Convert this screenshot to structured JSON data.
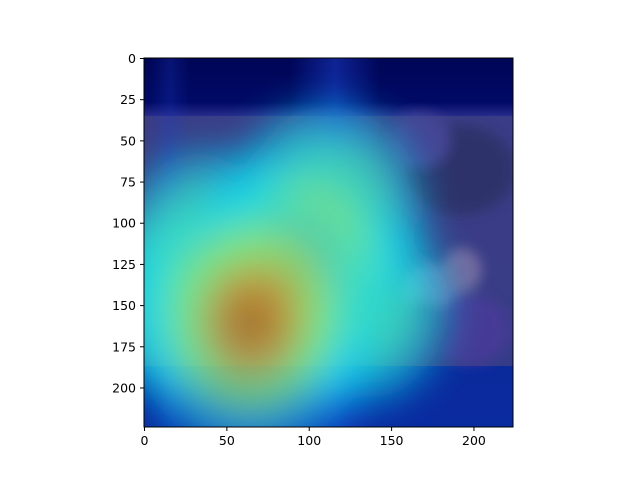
{
  "chart_data": {
    "type": "heatmap",
    "title": "",
    "xlabel": "",
    "ylabel": "",
    "xlim": [
      0,
      224
    ],
    "ylim": [
      224,
      0
    ],
    "x_ticks": [
      0,
      50,
      100,
      150,
      200
    ],
    "y_ticks": [
      0,
      25,
      50,
      75,
      100,
      125,
      150,
      175,
      200
    ],
    "x_tick_labels": [
      "0",
      "50",
      "100",
      "150",
      "200"
    ],
    "y_tick_labels": [
      "0",
      "25",
      "50",
      "75",
      "100",
      "125",
      "150",
      "175",
      "200"
    ],
    "colormap": "jet",
    "overlay": "Grad-CAM style attention heatmap blended over a photograph of people",
    "image_region": {
      "x": [
        0,
        224
      ],
      "y": [
        35,
        187
      ]
    },
    "hotspots": [
      {
        "x": 65,
        "y": 160,
        "intensity": 1.0
      },
      {
        "x": 90,
        "y": 130,
        "intensity": 0.85
      },
      {
        "x": 110,
        "y": 95,
        "intensity": 0.6
      },
      {
        "x": 40,
        "y": 120,
        "intensity": 0.55
      },
      {
        "x": 130,
        "y": 150,
        "intensity": 0.45
      },
      {
        "x": 20,
        "y": 150,
        "intensity": 0.3
      }
    ],
    "background_colors": {
      "top": "#000a5a",
      "mid": "#1a2a9a",
      "bottom": "#0a2aa0"
    }
  }
}
